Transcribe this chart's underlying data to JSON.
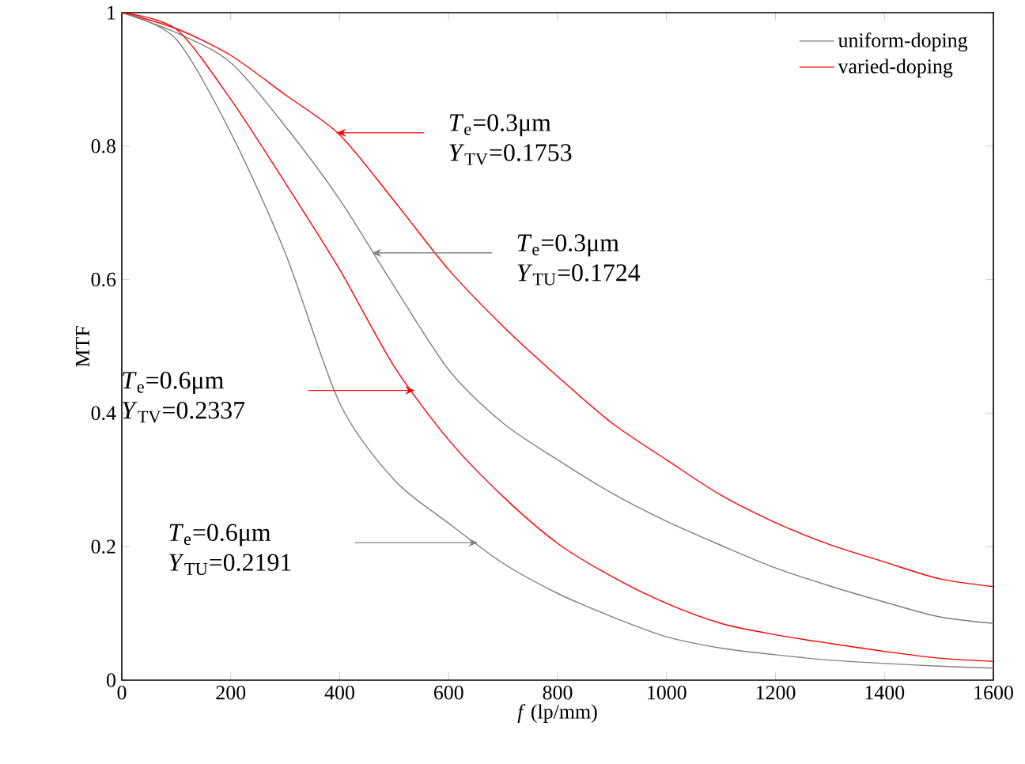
{
  "chart_data": {
    "type": "line",
    "xlabel": "*f* (lp/mm)",
    "ylabel": "MTF",
    "xlim": [
      0,
      1600
    ],
    "ylim": [
      0,
      1
    ],
    "xticks": [
      0,
      200,
      400,
      600,
      800,
      1000,
      1200,
      1400,
      1600
    ],
    "yticks": [
      0,
      0.2,
      0.4,
      0.6,
      0.8,
      1
    ],
    "legend": "top right",
    "x": [
      0,
      100,
      200,
      300,
      400,
      500,
      600,
      700,
      800,
      900,
      1000,
      1100,
      1200,
      1300,
      1400,
      1500,
      1600
    ],
    "series": [
      {
        "name": "uniform-doping",
        "color": "#808080",
        "values": [
          1,
          0.97,
          0.925,
          0.83,
          0.72,
          0.59,
          0.465,
          0.385,
          0.33,
          0.28,
          0.238,
          0.202,
          0.168,
          0.141,
          0.117,
          0.095,
          0.085
        ]
      },
      {
        "name": "varied-doping",
        "color": "#ff0000",
        "values": [
          1,
          0.976,
          0.936,
          0.877,
          0.817,
          0.718,
          0.615,
          0.53,
          0.455,
          0.385,
          0.33,
          0.277,
          0.236,
          0.203,
          0.177,
          0.152,
          0.14
        ]
      },
      {
        "color": "#808080",
        "values": [
          1,
          0.96,
          0.82,
          0.64,
          0.415,
          0.3,
          0.235,
          0.175,
          0.13,
          0.095,
          0.065,
          0.048,
          0.038,
          0.03,
          0.025,
          0.021,
          0.018
        ]
      },
      {
        "color": "#ff0000",
        "values": [
          1,
          0.975,
          0.87,
          0.745,
          0.615,
          0.47,
          0.36,
          0.275,
          0.205,
          0.155,
          0.115,
          0.085,
          0.068,
          0.055,
          0.043,
          0.033,
          0.028
        ]
      }
    ],
    "annotations": [
      "*T*$_{e}$=0.3μm *Y*$_{TV}$=0.1753",
      "*T*$_{e}$=0.3μm *Y*$_{TU}$=0.1724",
      "*T*$_{e}$=0.6μm *Y*$_{TV}$=0.2337",
      "*T*$_{e}$=0.6μm *Y*$_{TU}$=0.2191"
    ]
  }
}
